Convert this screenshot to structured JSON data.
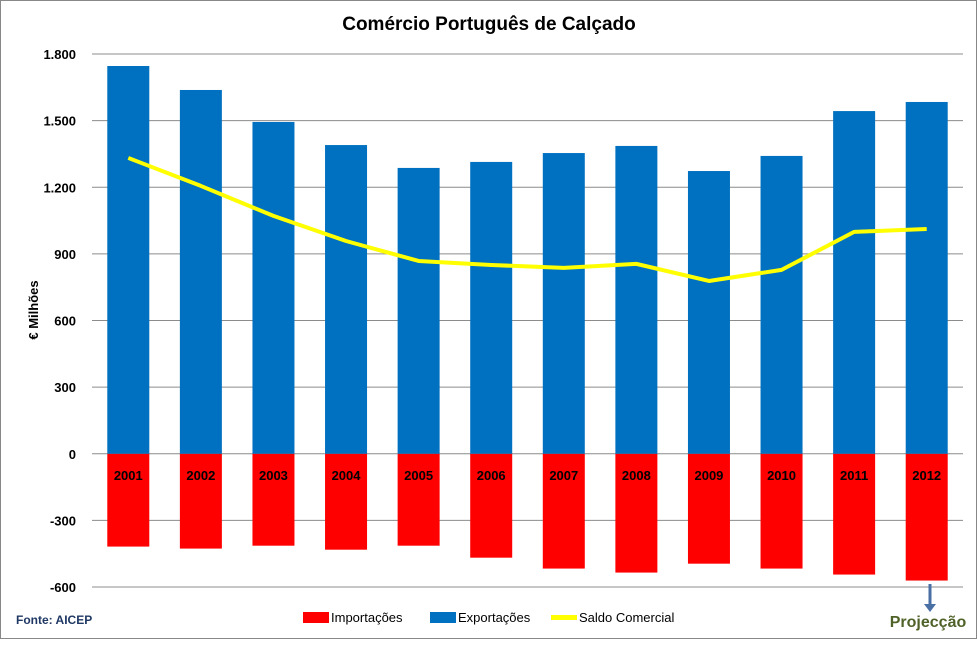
{
  "chart_data": {
    "type": "bar",
    "title": "Comércio Português de Calçado",
    "ylabel": "€ Milhões",
    "xlabel": "",
    "ylim": [
      -600,
      1800
    ],
    "yticks": [
      -600,
      -300,
      0,
      300,
      600,
      900,
      1200,
      1500,
      1800
    ],
    "ytick_labels": [
      "-600",
      "-300",
      "0",
      "300",
      "600",
      "900",
      "1.200",
      "1.500",
      "1.800"
    ],
    "grid": true,
    "legend_position": "bottom",
    "categories": [
      "2001",
      "2002",
      "2003",
      "2004",
      "2005",
      "2006",
      "2007",
      "2008",
      "2009",
      "2010",
      "2011",
      "2012"
    ],
    "series": [
      {
        "name": "Importações",
        "type": "bar",
        "color": "#ff0000",
        "values": [
          -418,
          -427,
          -414,
          -432,
          -414,
          -468,
          -517,
          -535,
          -495,
          -517,
          -544,
          -571
        ]
      },
      {
        "name": "Exportações",
        "type": "bar",
        "color": "#0070c0",
        "values": [
          1746,
          1638,
          1494,
          1390,
          1287,
          1314,
          1354,
          1386,
          1273,
          1341,
          1543,
          1584
        ]
      },
      {
        "name": "Saldo Comercial",
        "type": "line",
        "color": "#ffff00",
        "values": [
          1332,
          1206,
          1071,
          958,
          868,
          850,
          837,
          855,
          778,
          828,
          999,
          1012
        ]
      }
    ],
    "source": "Fonte: AICEP",
    "annotation": "Projecção"
  }
}
